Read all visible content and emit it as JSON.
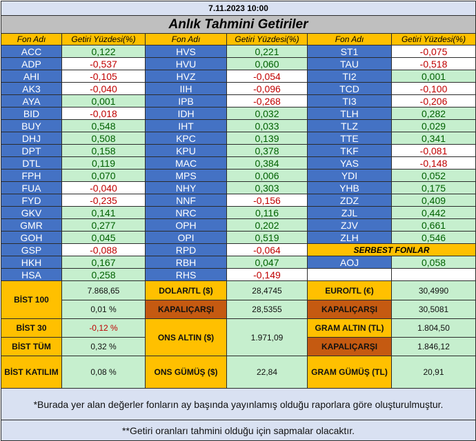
{
  "date": "7.11.2023 10:00",
  "title": "Anlık Tahmini Getiriler",
  "headers": {
    "fund": "Fon Adı",
    "return": "Getiri Yüzdesi(%)"
  },
  "columns": [
    [
      {
        "name": "ACC",
        "value": "0,122",
        "sign": "pos"
      },
      {
        "name": "ADP",
        "value": "-0,537",
        "sign": "neg"
      },
      {
        "name": "AHI",
        "value": "-0,105",
        "sign": "neg"
      },
      {
        "name": "AK3",
        "value": "-0,040",
        "sign": "neg"
      },
      {
        "name": "AYA",
        "value": "0,001",
        "sign": "pos"
      },
      {
        "name": "BID",
        "value": "-0,018",
        "sign": "neg"
      },
      {
        "name": "BUY",
        "value": "0,548",
        "sign": "pos"
      },
      {
        "name": "DHJ",
        "value": "0,508",
        "sign": "pos"
      },
      {
        "name": "DPT",
        "value": "0,158",
        "sign": "pos"
      },
      {
        "name": "DTL",
        "value": "0,119",
        "sign": "pos"
      },
      {
        "name": "FPH",
        "value": "0,070",
        "sign": "pos"
      },
      {
        "name": "FUA",
        "value": "-0,040",
        "sign": "neg"
      },
      {
        "name": "FYD",
        "value": "-0,235",
        "sign": "neg"
      },
      {
        "name": "GKV",
        "value": "0,141",
        "sign": "pos"
      },
      {
        "name": "GMR",
        "value": "0,277",
        "sign": "pos"
      },
      {
        "name": "GOH",
        "value": "0,045",
        "sign": "pos"
      },
      {
        "name": "GSP",
        "value": "-0,088",
        "sign": "neg"
      },
      {
        "name": "HKH",
        "value": "0,167",
        "sign": "pos"
      },
      {
        "name": "HSA",
        "value": "0,258",
        "sign": "pos"
      }
    ],
    [
      {
        "name": "HVS",
        "value": "0,221",
        "sign": "pos"
      },
      {
        "name": "HVU",
        "value": "0,060",
        "sign": "pos"
      },
      {
        "name": "HVZ",
        "value": "-0,054",
        "sign": "neg"
      },
      {
        "name": "IIH",
        "value": "-0,096",
        "sign": "neg"
      },
      {
        "name": "IPB",
        "value": "-0,268",
        "sign": "neg"
      },
      {
        "name": "IDH",
        "value": "0,032",
        "sign": "pos"
      },
      {
        "name": "IHT",
        "value": "0,033",
        "sign": "pos"
      },
      {
        "name": "KPC",
        "value": "0,139",
        "sign": "pos"
      },
      {
        "name": "KPU",
        "value": "0,378",
        "sign": "pos"
      },
      {
        "name": "MAC",
        "value": "0,384",
        "sign": "pos"
      },
      {
        "name": "MPS",
        "value": "0,006",
        "sign": "pos"
      },
      {
        "name": "NHY",
        "value": "0,303",
        "sign": "pos"
      },
      {
        "name": "NNF",
        "value": "-0,156",
        "sign": "neg"
      },
      {
        "name": "NRC",
        "value": "0,116",
        "sign": "pos"
      },
      {
        "name": "OPH",
        "value": "0,202",
        "sign": "pos"
      },
      {
        "name": "OPI",
        "value": "0,519",
        "sign": "pos"
      },
      {
        "name": "RPD",
        "value": "-0,064",
        "sign": "neg"
      },
      {
        "name": "RBH",
        "value": "0,047",
        "sign": "pos"
      },
      {
        "name": "RHS",
        "value": "-0,149",
        "sign": "neg"
      }
    ],
    [
      {
        "name": "ST1",
        "value": "-0,075",
        "sign": "neg"
      },
      {
        "name": "TAU",
        "value": "-0,518",
        "sign": "neg"
      },
      {
        "name": "TI2",
        "value": "0,001",
        "sign": "pos"
      },
      {
        "name": "TCD",
        "value": "-0,100",
        "sign": "neg"
      },
      {
        "name": "TI3",
        "value": "-0,206",
        "sign": "neg"
      },
      {
        "name": "TLH",
        "value": "0,282",
        "sign": "pos"
      },
      {
        "name": "TLZ",
        "value": "0,029",
        "sign": "pos"
      },
      {
        "name": "TTE",
        "value": "0,341",
        "sign": "pos"
      },
      {
        "name": "TKF",
        "value": "-0,081",
        "sign": "neg"
      },
      {
        "name": "YAS",
        "value": "-0,148",
        "sign": "neg"
      },
      {
        "name": "YDI",
        "value": "0,052",
        "sign": "pos"
      },
      {
        "name": "YHB",
        "value": "0,175",
        "sign": "pos"
      },
      {
        "name": "ZDZ",
        "value": "0,409",
        "sign": "pos"
      },
      {
        "name": "ZJL",
        "value": "0,442",
        "sign": "pos"
      },
      {
        "name": "ZJV",
        "value": "0,661",
        "sign": "pos"
      },
      {
        "name": "ZLH",
        "value": "0,546",
        "sign": "pos"
      }
    ]
  ],
  "serbest": {
    "label": "SERBEST FONLAR",
    "funds": [
      {
        "name": "AOJ",
        "value": "0,058",
        "sign": "pos"
      }
    ]
  },
  "market": {
    "bist100_label": "BİST 100",
    "bist100_value": "7.868,65",
    "bist100_change": "0,01 %",
    "bist30_label": "BİST 30",
    "bist30_change": "-0,12 %",
    "bisttum_label": "BİST TÜM",
    "bisttum_change": "0,32 %",
    "bistkatilim_label": "BİST KATILIM",
    "bistkatilim_change": "0,08 %",
    "dolar_label": "DOLAR/TL ($)",
    "dolar_value": "28,4745",
    "dolar_kapali_label": "KAPALIÇARŞI",
    "dolar_kapali_value": "28,5355",
    "ons_altin_label": "ONS ALTIN ($)",
    "ons_altin_value": "1.971,09",
    "ons_gumus_label": "ONS GÜMÜŞ ($)",
    "ons_gumus_value": "22,84",
    "euro_label": "EURO/TL (€)",
    "euro_value": "30,4990",
    "euro_kapali_label": "KAPALIÇARŞI",
    "euro_kapali_value": "30,5081",
    "gram_altin_label": "GRAM ALTIN (TL)",
    "gram_altin_value": "1.804,50",
    "gram_altin_kapali_label": "KAPALIÇARŞI",
    "gram_altin_kapali_value": "1.846,12",
    "gram_gumus_label": "GRAM GÜMÜŞ (TL)",
    "gram_gumus_value": "20,91"
  },
  "notes": {
    "note1": "*Burada yer alan değerler fonların ay başında yayınlamış olduğu raporlara göre oluşturulmuştur.",
    "note2": "**Getiri oranları tahmini olduğu için sapmalar olacaktır."
  },
  "colors": {
    "header_bg": "#ffc000",
    "name_bg": "#4472c4",
    "positive_bg": "#c6efce",
    "positive_text": "#006100",
    "negative_text": "#c00000",
    "kapalicarsi_bg": "#c55a11",
    "note_bg": "#d9e1f2",
    "title_bg": "#bfbfbf"
  }
}
